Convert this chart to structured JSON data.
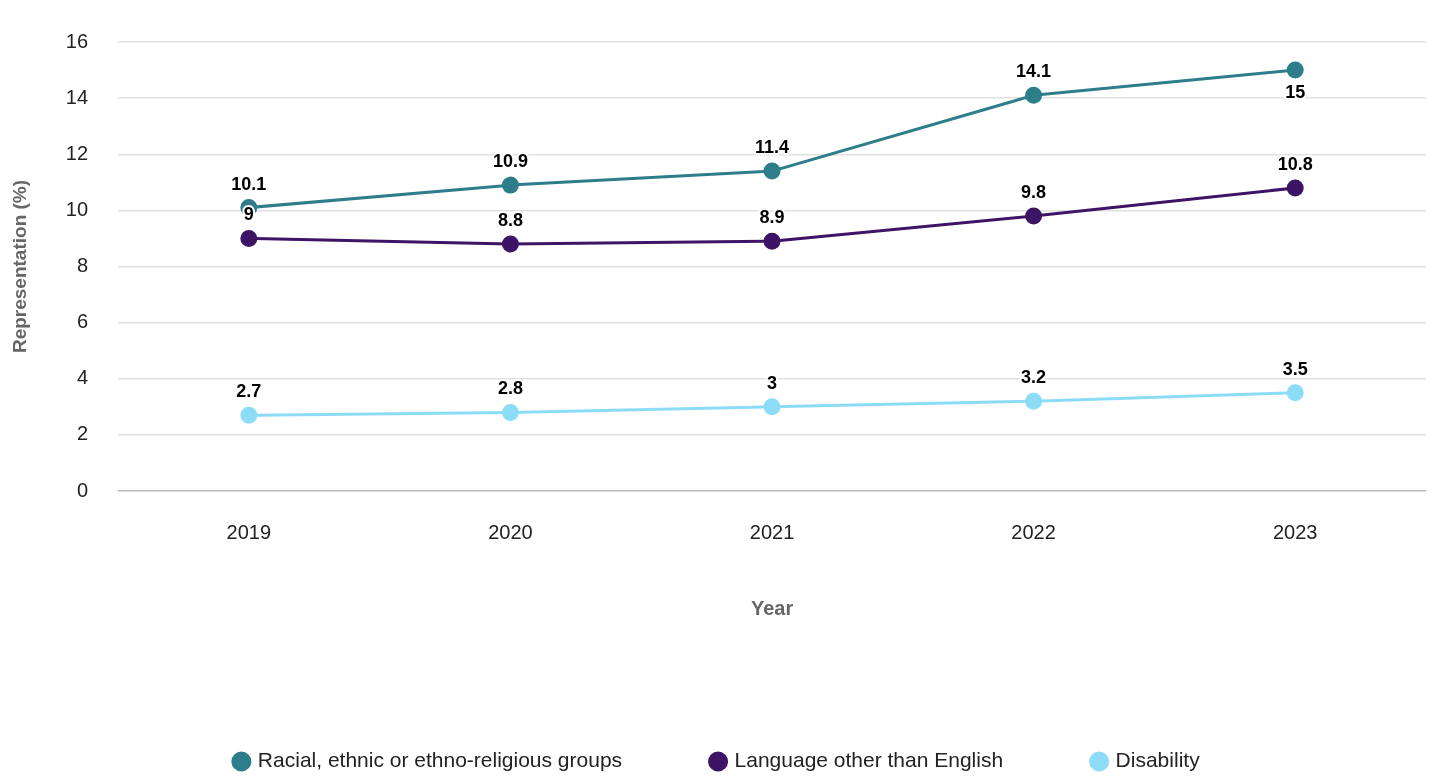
{
  "chart_data": {
    "type": "line",
    "xlabel": "Year",
    "ylabel": "Representation (%)",
    "categories": [
      "2019",
      "2020",
      "2021",
      "2022",
      "2023"
    ],
    "series": [
      {
        "name": "Racial, ethnic or ethno-religious groups",
        "color": "#2e7d8a",
        "values": [
          10.1,
          10.9,
          11.4,
          14.1,
          15
        ]
      },
      {
        "name": "Language other than English",
        "color": "#3d1466",
        "values": [
          9,
          8.8,
          8.9,
          9.8,
          10.8
        ]
      },
      {
        "name": "Disability",
        "color": "#8cdcf8",
        "values": [
          2.7,
          2.8,
          3,
          3.2,
          3.5
        ]
      }
    ],
    "ylim": [
      0,
      16
    ],
    "yticks": [
      0,
      2,
      4,
      6,
      8,
      10,
      12,
      14,
      16
    ],
    "grid": "y",
    "legend": "bottom",
    "marker": "circle",
    "line_style": "solid",
    "data_labels": true
  }
}
